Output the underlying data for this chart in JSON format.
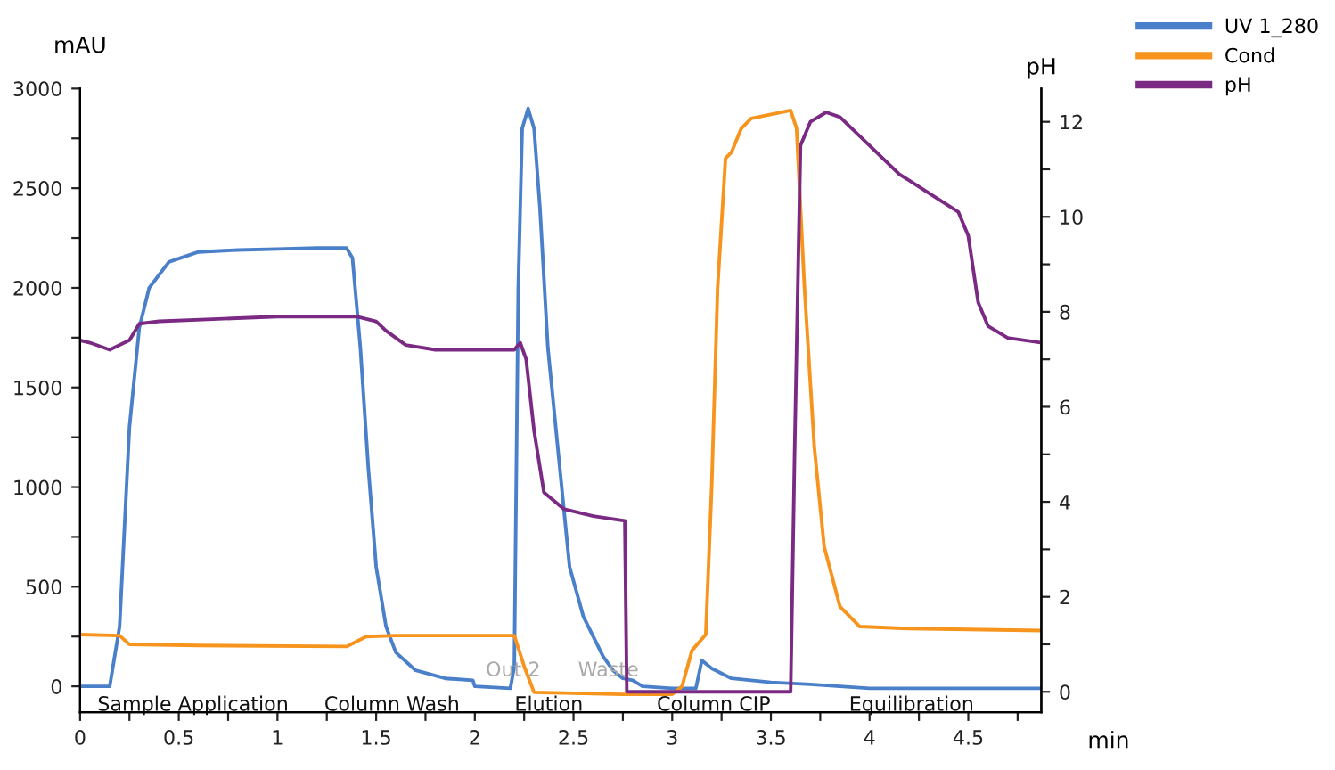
{
  "chart_data": {
    "type": "line",
    "xlabel": "min",
    "ylabel": "mAU",
    "y2label": "pH",
    "x": [
      0,
      0.15,
      0.2,
      0.25,
      0.3,
      0.35,
      0.45,
      0.6,
      0.8,
      1.0,
      1.2,
      1.35,
      1.38,
      1.42,
      1.46,
      1.5,
      1.55,
      1.6,
      1.7,
      1.85,
      1.99,
      2.0,
      2.18,
      2.2,
      2.22,
      2.24,
      2.27,
      2.3,
      2.33,
      2.37,
      2.42,
      2.48,
      2.55,
      2.65,
      2.7,
      2.75,
      2.8,
      2.85,
      3.0,
      3.12,
      3.15,
      3.2,
      3.3,
      3.5,
      3.7,
      4.0,
      4.87
    ],
    "series": [
      {
        "name": "UV 1_280",
        "color": "#4a7fc9",
        "values": [
          0,
          0,
          300,
          1300,
          1800,
          2000,
          2130,
          2180,
          2190,
          2195,
          2200,
          2200,
          2150,
          1700,
          1100,
          600,
          300,
          170,
          80,
          40,
          30,
          0,
          -10,
          100,
          2000,
          2800,
          2900,
          2800,
          2400,
          1700,
          1200,
          600,
          350,
          150,
          80,
          40,
          30,
          0,
          -10,
          -10,
          130,
          90,
          40,
          20,
          10,
          -10,
          -10
        ]
      },
      {
        "name": "Cond",
        "color": "#f7941d",
        "x": [
          0,
          0.2,
          0.25,
          0.6,
          1.35,
          1.45,
          1.6,
          2.2,
          2.25,
          2.3,
          2.75,
          3.0,
          3.05,
          3.1,
          3.17,
          3.2,
          3.23,
          3.27,
          3.3,
          3.35,
          3.4,
          3.5,
          3.6,
          3.63,
          3.67,
          3.72,
          3.77,
          3.85,
          3.95,
          4.2,
          4.87
        ],
        "values": [
          260,
          255,
          210,
          205,
          200,
          250,
          255,
          255,
          100,
          -30,
          -40,
          -40,
          0,
          180,
          260,
          1000,
          2000,
          2650,
          2680,
          2800,
          2850,
          2870,
          2890,
          2800,
          2000,
          1200,
          700,
          400,
          300,
          290,
          280
        ]
      },
      {
        "name": "pH",
        "color": "#7b2a84",
        "axis": "y2",
        "x": [
          0,
          0.05,
          0.15,
          0.25,
          0.3,
          0.4,
          0.7,
          1.0,
          1.4,
          1.5,
          1.55,
          1.65,
          1.8,
          2.2,
          2.23,
          2.26,
          2.3,
          2.35,
          2.45,
          2.6,
          2.76,
          2.77,
          3.6,
          3.62,
          3.65,
          3.7,
          3.78,
          3.85,
          4.0,
          4.15,
          4.3,
          4.45,
          4.5,
          4.55,
          4.6,
          4.7,
          4.87
        ],
        "values": [
          7.4,
          7.35,
          7.2,
          7.4,
          7.75,
          7.8,
          7.85,
          7.9,
          7.9,
          7.8,
          7.6,
          7.3,
          7.2,
          7.2,
          7.35,
          7.0,
          5.5,
          4.2,
          3.85,
          3.7,
          3.6,
          0,
          0,
          5,
          11.5,
          12.0,
          12.2,
          12.1,
          11.5,
          10.9,
          10.5,
          10.1,
          9.6,
          8.2,
          7.7,
          7.45,
          7.35
        ]
      }
    ],
    "xlim": [
      0,
      4.87
    ],
    "ylim": [
      -130,
      3000
    ],
    "y2lim": [
      -0.43,
      12.7
    ],
    "xticks": [
      0,
      {
        "value": 0.25,
        "label": null
      },
      0.5,
      {
        "value": 0.75,
        "label": null
      },
      1,
      {
        "value": 1.25,
        "label": null
      },
      1.5,
      {
        "value": 1.75,
        "label": null
      },
      2,
      {
        "value": 2.25,
        "label": null
      },
      2.5,
      {
        "value": 2.75,
        "label": null
      },
      3,
      {
        "value": 3.25,
        "label": null
      },
      3.5,
      {
        "value": 3.75,
        "label": null
      },
      4,
      {
        "value": 4.25,
        "label": null
      },
      4.5,
      {
        "value": 4.75,
        "label": null
      }
    ],
    "yticks": [
      0,
      {
        "value": 250,
        "label": null
      },
      500,
      {
        "value": 750,
        "label": null
      },
      1000,
      {
        "value": 1250,
        "label": null
      },
      1500,
      {
        "value": 1750,
        "label": null
      },
      2000,
      {
        "value": 2250,
        "label": null
      },
      2500,
      {
        "value": 2750,
        "label": null
      },
      3000
    ],
    "y2ticks": [
      0,
      {
        "value": 1,
        "label": null
      },
      2,
      {
        "value": 3,
        "label": null
      },
      4,
      {
        "value": 5,
        "label": null
      },
      6,
      {
        "value": 7,
        "label": null
      },
      8,
      {
        "value": 9,
        "label": null
      },
      10,
      {
        "value": 11,
        "label": null
      },
      12
    ],
    "annotations": [
      "Sample Application",
      "Column Wash",
      "Elution",
      "Column CIP",
      "Equilibration",
      "Out 2",
      "Waste"
    ],
    "grid": false,
    "legend": "top right",
    "marker": "none",
    "line_style": "solid"
  }
}
